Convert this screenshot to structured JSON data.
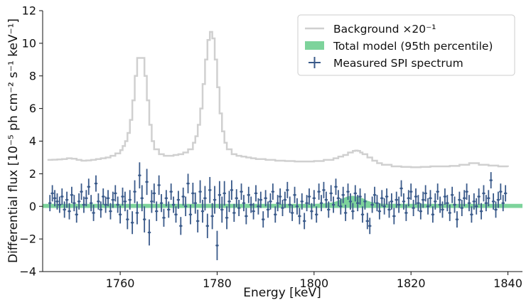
{
  "chart_data": {
    "type": "line",
    "xlabel": "Energy [keV]",
    "ylabel": "Differential flux [10⁻⁵ ph cm⁻² s⁻¹ keV⁻¹]",
    "xlim": [
      1744,
      1843
    ],
    "ylim": [
      -4,
      12
    ],
    "xticks": [
      1760,
      1780,
      1800,
      1820,
      1840
    ],
    "yticks": [
      -4,
      -2,
      0,
      2,
      4,
      6,
      8,
      10,
      12
    ],
    "legend_position": "top-right",
    "legend": [
      {
        "key": "background",
        "label": "Background ×20⁻¹"
      },
      {
        "key": "model",
        "label": "Total model (95th percentile)"
      },
      {
        "key": "measured",
        "label": "Measured SPI spectrum"
      }
    ],
    "colors": {
      "background": "#d0d0d0",
      "model": "#7dd39b",
      "measured": "#3a5a8a"
    },
    "background_x": [
      1745,
      1746,
      1747,
      1748,
      1749,
      1750,
      1751,
      1752,
      1753,
      1754,
      1755,
      1756,
      1757,
      1758,
      1759,
      1760,
      1760.5,
      1761,
      1761.5,
      1762,
      1762.5,
      1763,
      1763.5,
      1764,
      1764.5,
      1765,
      1765.5,
      1766,
      1766.5,
      1767,
      1768,
      1769,
      1770,
      1771,
      1772,
      1773,
      1774,
      1775,
      1775.5,
      1776,
      1776.5,
      1777,
      1777.5,
      1778,
      1778.5,
      1779,
      1779.5,
      1780,
      1780.5,
      1781,
      1781.5,
      1782,
      1783,
      1784,
      1785,
      1786,
      1787,
      1788,
      1790,
      1792,
      1794,
      1796,
      1798,
      1800,
      1802,
      1804,
      1805,
      1806,
      1807,
      1808,
      1808.5,
      1809,
      1809.5,
      1810,
      1811,
      1812,
      1813,
      1814,
      1816,
      1818,
      1820,
      1822,
      1824,
      1826,
      1828,
      1830,
      1832,
      1834,
      1836,
      1838,
      1840
    ],
    "background_y": [
      2.85,
      2.86,
      2.88,
      2.9,
      2.95,
      2.92,
      2.85,
      2.8,
      2.82,
      2.85,
      2.9,
      2.95,
      3.0,
      3.1,
      3.25,
      3.45,
      3.7,
      4.0,
      4.5,
      5.3,
      6.5,
      8.0,
      9.1,
      9.1,
      9.1,
      8.0,
      6.5,
      5.0,
      4.0,
      3.5,
      3.2,
      3.1,
      3.1,
      3.15,
      3.2,
      3.3,
      3.5,
      3.9,
      4.3,
      5.0,
      6.0,
      7.5,
      9.0,
      10.2,
      10.7,
      10.3,
      9.0,
      7.3,
      5.7,
      4.6,
      3.9,
      3.5,
      3.2,
      3.1,
      3.05,
      3.0,
      2.95,
      2.9,
      2.85,
      2.8,
      2.78,
      2.75,
      2.75,
      2.78,
      2.85,
      2.95,
      3.05,
      3.15,
      3.3,
      3.4,
      3.42,
      3.4,
      3.3,
      3.2,
      3.0,
      2.8,
      2.65,
      2.55,
      2.45,
      2.42,
      2.4,
      2.42,
      2.45,
      2.45,
      2.48,
      2.55,
      2.65,
      2.55,
      2.5,
      2.45,
      2.42
    ],
    "model_x": [
      1744,
      1800,
      1802,
      1804,
      1805,
      1806,
      1807,
      1808,
      1809,
      1810,
      1811,
      1812,
      1814,
      1843
    ],
    "model_upper": [
      0.15,
      0.15,
      0.18,
      0.25,
      0.35,
      0.5,
      0.62,
      0.65,
      0.6,
      0.5,
      0.35,
      0.25,
      0.16,
      0.15
    ],
    "model_lower": [
      -0.1,
      -0.1,
      -0.1,
      -0.1,
      -0.1,
      -0.1,
      -0.1,
      -0.1,
      -0.1,
      -0.1,
      -0.1,
      -0.1,
      -0.1,
      -0.1
    ],
    "measured": [
      [
        1745.5,
        0.2,
        0.5
      ],
      [
        1746,
        0.8,
        0.5
      ],
      [
        1746.5,
        0.5,
        0.5
      ],
      [
        1747,
        0.3,
        0.5
      ],
      [
        1747.5,
        0.1,
        0.5
      ],
      [
        1748,
        0.6,
        0.5
      ],
      [
        1748.5,
        -0.2,
        0.5
      ],
      [
        1749,
        0.4,
        0.5
      ],
      [
        1749.5,
        -0.3,
        0.5
      ],
      [
        1750,
        0.7,
        0.5
      ],
      [
        1750.5,
        0.2,
        0.5
      ],
      [
        1751,
        -0.5,
        0.5
      ],
      [
        1751.5,
        0.3,
        0.5
      ],
      [
        1752,
        0.9,
        0.5
      ],
      [
        1752.5,
        0.1,
        0.5
      ],
      [
        1753,
        0.5,
        0.5
      ],
      [
        1753.5,
        1.2,
        0.5
      ],
      [
        1754,
        0.2,
        0.5
      ],
      [
        1754.5,
        -0.4,
        0.5
      ],
      [
        1755,
        1.4,
        0.5
      ],
      [
        1755.5,
        0.3,
        0.5
      ],
      [
        1756,
        -0.2,
        0.5
      ],
      [
        1756.5,
        0.6,
        0.5
      ],
      [
        1757,
        0.1,
        0.5
      ],
      [
        1757.5,
        0.5,
        0.5
      ],
      [
        1758,
        -0.3,
        0.5
      ],
      [
        1758.5,
        0.4,
        0.5
      ],
      [
        1759,
        0.8,
        0.5
      ],
      [
        1759.5,
        0.1,
        0.5
      ],
      [
        1760,
        -0.5,
        0.55
      ],
      [
        1760.5,
        0.6,
        0.55
      ],
      [
        1761,
        0.3,
        0.6
      ],
      [
        1761.5,
        -0.8,
        0.6
      ],
      [
        1762,
        0.4,
        0.6
      ],
      [
        1762.5,
        -1.0,
        0.7
      ],
      [
        1763,
        0.9,
        0.7
      ],
      [
        1763.5,
        -0.4,
        0.7
      ],
      [
        1764,
        1.9,
        0.8
      ],
      [
        1764.5,
        0.5,
        0.8
      ],
      [
        1765,
        -0.8,
        0.8
      ],
      [
        1765.5,
        1.5,
        0.8
      ],
      [
        1766,
        -1.6,
        0.8
      ],
      [
        1766.5,
        0.3,
        0.7
      ],
      [
        1767,
        0.8,
        0.6
      ],
      [
        1767.5,
        -0.3,
        0.6
      ],
      [
        1768,
        1.3,
        0.6
      ],
      [
        1768.5,
        0.2,
        0.55
      ],
      [
        1769,
        -0.7,
        0.55
      ],
      [
        1769.5,
        0.5,
        0.5
      ],
      [
        1770,
        -0.2,
        0.5
      ],
      [
        1770.5,
        0.9,
        0.5
      ],
      [
        1771,
        0.1,
        0.5
      ],
      [
        1771.5,
        -0.5,
        0.5
      ],
      [
        1772,
        0.4,
        0.55
      ],
      [
        1772.5,
        -1.2,
        0.55
      ],
      [
        1773,
        0.6,
        0.55
      ],
      [
        1773.5,
        0.0,
        0.6
      ],
      [
        1774,
        1.4,
        0.6
      ],
      [
        1774.5,
        -0.5,
        0.6
      ],
      [
        1775,
        0.8,
        0.65
      ],
      [
        1775.5,
        0.2,
        0.65
      ],
      [
        1776,
        -0.9,
        0.7
      ],
      [
        1776.5,
        0.9,
        0.7
      ],
      [
        1777,
        -0.3,
        0.7
      ],
      [
        1777.5,
        0.5,
        0.75
      ],
      [
        1778,
        -1.2,
        0.75
      ],
      [
        1778.5,
        1.0,
        0.8
      ],
      [
        1779,
        -0.6,
        0.8
      ],
      [
        1779.5,
        0.4,
        0.85
      ],
      [
        1780,
        -2.4,
        0.9
      ],
      [
        1780.5,
        0.7,
        0.85
      ],
      [
        1781,
        -0.2,
        0.8
      ],
      [
        1781.5,
        0.8,
        0.75
      ],
      [
        1782,
        -0.7,
        0.7
      ],
      [
        1782.5,
        0.3,
        0.65
      ],
      [
        1783,
        1.0,
        0.6
      ],
      [
        1783.5,
        -0.4,
        0.55
      ],
      [
        1784,
        0.5,
        0.55
      ],
      [
        1784.5,
        -0.1,
        0.5
      ],
      [
        1785,
        0.9,
        0.5
      ],
      [
        1785.5,
        0.2,
        0.5
      ],
      [
        1786,
        -0.6,
        0.5
      ],
      [
        1786.5,
        0.7,
        0.5
      ],
      [
        1787,
        0.1,
        0.5
      ],
      [
        1787.5,
        -0.3,
        0.5
      ],
      [
        1788,
        0.8,
        0.5
      ],
      [
        1788.5,
        0.0,
        0.5
      ],
      [
        1789,
        0.4,
        0.5
      ],
      [
        1789.5,
        -0.8,
        0.5
      ],
      [
        1790,
        0.5,
        0.5
      ],
      [
        1790.5,
        -0.2,
        0.5
      ],
      [
        1791,
        0.3,
        0.5
      ],
      [
        1791.5,
        0.9,
        0.5
      ],
      [
        1792,
        -0.5,
        0.5
      ],
      [
        1792.5,
        0.2,
        0.5
      ],
      [
        1793,
        0.6,
        0.5
      ],
      [
        1793.5,
        -0.1,
        0.5
      ],
      [
        1794,
        0.4,
        0.5
      ],
      [
        1794.5,
        1.0,
        0.5
      ],
      [
        1795,
        0.1,
        0.5
      ],
      [
        1795.5,
        -0.4,
        0.5
      ],
      [
        1796,
        0.7,
        0.5
      ],
      [
        1796.5,
        0.0,
        0.5
      ],
      [
        1797,
        -0.6,
        0.5
      ],
      [
        1797.5,
        0.3,
        0.5
      ],
      [
        1798,
        -0.9,
        0.5
      ],
      [
        1798.5,
        0.2,
        0.5
      ],
      [
        1799,
        0.6,
        0.5
      ],
      [
        1799.5,
        -0.3,
        0.5
      ],
      [
        1800,
        0.5,
        0.5
      ],
      [
        1800.5,
        -0.5,
        0.5
      ],
      [
        1801,
        0.9,
        0.5
      ],
      [
        1801.5,
        0.2,
        0.5
      ],
      [
        1802,
        1.0,
        0.5
      ],
      [
        1802.5,
        0.4,
        0.5
      ],
      [
        1803,
        -0.2,
        0.5
      ],
      [
        1803.5,
        0.8,
        0.5
      ],
      [
        1804,
        0.1,
        0.5
      ],
      [
        1804.5,
        1.2,
        0.5
      ],
      [
        1805,
        0.5,
        0.5
      ],
      [
        1805.5,
        0.0,
        0.5
      ],
      [
        1806,
        0.7,
        0.5
      ],
      [
        1806.5,
        -0.4,
        0.5
      ],
      [
        1807,
        0.9,
        0.5
      ],
      [
        1807.5,
        0.3,
        0.5
      ],
      [
        1808,
        -0.3,
        0.5
      ],
      [
        1808.5,
        0.8,
        0.5
      ],
      [
        1809,
        0.2,
        0.5
      ],
      [
        1809.5,
        0.6,
        0.5
      ],
      [
        1810,
        -0.5,
        0.5
      ],
      [
        1810.5,
        0.3,
        0.5
      ],
      [
        1811,
        -0.9,
        0.5
      ],
      [
        1811.5,
        -1.2,
        0.5
      ],
      [
        1812,
        0.1,
        0.5
      ],
      [
        1812.5,
        0.7,
        0.5
      ],
      [
        1813,
        0.2,
        0.5
      ],
      [
        1813.5,
        -0.3,
        0.5
      ],
      [
        1814,
        0.5,
        0.5
      ],
      [
        1814.5,
        0.0,
        0.5
      ],
      [
        1815,
        0.6,
        0.5
      ],
      [
        1815.5,
        -0.2,
        0.5
      ],
      [
        1816,
        0.3,
        0.5
      ],
      [
        1816.5,
        -0.6,
        0.5
      ],
      [
        1817,
        0.4,
        0.5
      ],
      [
        1817.5,
        0.1,
        0.5
      ],
      [
        1818,
        1.1,
        0.5
      ],
      [
        1818.5,
        0.3,
        0.5
      ],
      [
        1819,
        -0.4,
        0.5
      ],
      [
        1819.5,
        0.5,
        0.5
      ],
      [
        1820,
        0.9,
        0.5
      ],
      [
        1820.5,
        -0.1,
        0.5
      ],
      [
        1821,
        0.6,
        0.5
      ],
      [
        1821.5,
        0.2,
        0.5
      ],
      [
        1822,
        -0.3,
        0.5
      ],
      [
        1822.5,
        0.4,
        0.5
      ],
      [
        1823,
        0.8,
        0.5
      ],
      [
        1823.5,
        0.0,
        0.5
      ],
      [
        1824,
        0.5,
        0.5
      ],
      [
        1824.5,
        -0.5,
        0.5
      ],
      [
        1825,
        0.3,
        0.5
      ],
      [
        1825.5,
        0.9,
        0.5
      ],
      [
        1826,
        0.1,
        0.5
      ],
      [
        1826.5,
        -0.2,
        0.5
      ],
      [
        1827,
        0.6,
        0.5
      ],
      [
        1827.5,
        0.2,
        0.5
      ],
      [
        1828,
        -0.4,
        0.5
      ],
      [
        1828.5,
        0.7,
        0.5
      ],
      [
        1829,
        0.1,
        0.5
      ],
      [
        1829.5,
        -0.8,
        0.5
      ],
      [
        1830,
        0.4,
        0.5
      ],
      [
        1830.5,
        -0.1,
        0.5
      ],
      [
        1831,
        0.5,
        0.5
      ],
      [
        1831.5,
        0.9,
        0.5
      ],
      [
        1832,
        0.2,
        0.5
      ],
      [
        1832.5,
        -0.5,
        0.5
      ],
      [
        1833,
        0.3,
        0.5
      ],
      [
        1833.5,
        0.0,
        0.5
      ],
      [
        1834,
        0.6,
        0.5
      ],
      [
        1834.5,
        -0.3,
        0.5
      ],
      [
        1835,
        0.8,
        0.5
      ],
      [
        1835.5,
        0.2,
        0.5
      ],
      [
        1836,
        0.5,
        0.5
      ],
      [
        1836.5,
        1.6,
        0.5
      ],
      [
        1837,
        0.3,
        0.5
      ],
      [
        1837.5,
        -0.2,
        0.5
      ],
      [
        1838,
        0.4,
        0.5
      ],
      [
        1838.5,
        0.9,
        0.5
      ],
      [
        1839,
        0.2,
        0.5
      ],
      [
        1839.5,
        0.8,
        0.5
      ]
    ]
  }
}
